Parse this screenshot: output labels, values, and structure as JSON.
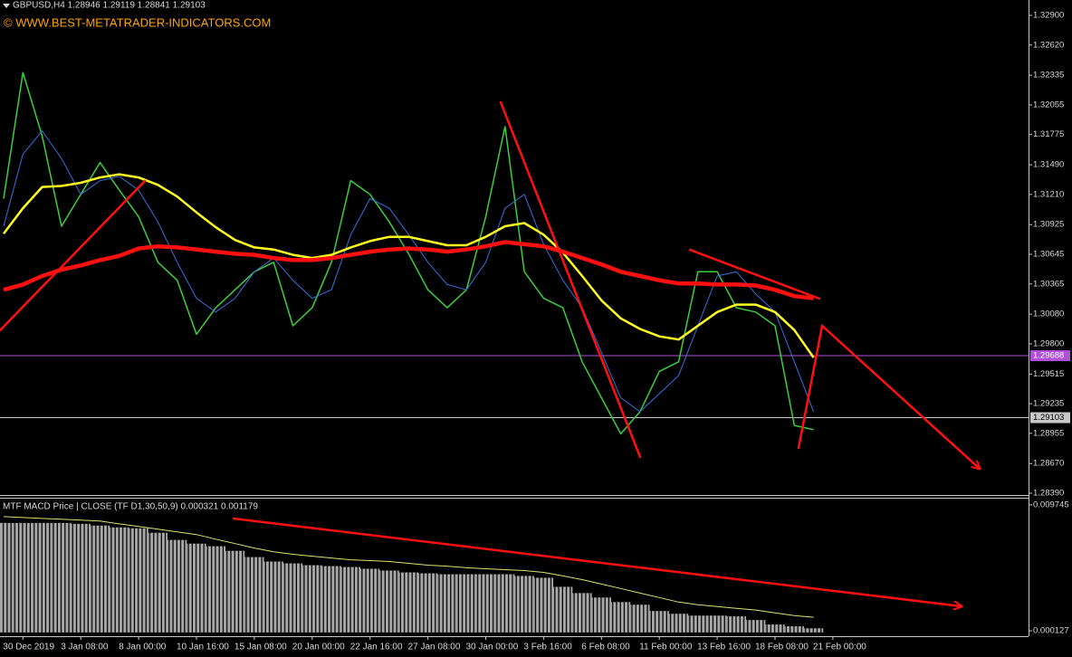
{
  "chart_data": [
    {
      "type": "line",
      "title": "GBPUSD,H4  1.28946 1.29119 1.28841 1.29103",
      "subtitle": "© WWW.BEST-METATRADER-INDICATORS.COM",
      "categories": [
        null,
        "30 Dec 2019",
        null,
        null,
        "3 Jan 08:00",
        null,
        null,
        "8 Jan 00:00",
        null,
        null,
        "10 Jan 16:00",
        null,
        null,
        "15 Jan 08:00",
        null,
        null,
        "20 Jan 00:00",
        null,
        null,
        "22 Jan 16:00",
        null,
        null,
        "27 Jan 08:00",
        null,
        null,
        "30 Jan 00:00",
        null,
        null,
        "3 Feb 16:00",
        null,
        null,
        "6 Feb 08:00",
        null,
        null,
        "11 Feb 00:00",
        null,
        null,
        "13 Feb 16:00",
        null,
        null,
        "18 Feb 08:00",
        null,
        null,
        "21 Feb 00:00"
      ],
      "series": [
        {
          "color": "#3ccf3c",
          "width": 1.5,
          "values": [
            1.3117,
            1.3236,
            1.3176,
            1.3091,
            1.3121,
            1.3151,
            1.3125,
            1.31,
            1.3057,
            1.304,
            1.2989,
            1.3014,
            1.3031,
            1.3048,
            1.3057,
            1.2997,
            1.3014,
            1.3057,
            1.3134,
            1.3121,
            1.3095,
            1.3065,
            1.3031,
            1.3014,
            1.3031,
            1.31,
            1.3185,
            1.3048,
            1.3023,
            1.3014,
            1.2963,
            1.2929,
            1.2895,
            1.2916,
            1.2954,
            1.2963,
            1.3048,
            1.3048,
            1.3014,
            1.301,
            1.2997,
            1.2903,
            1.2899,
            null
          ]
        },
        {
          "color": "#3a6fe0",
          "width": 1,
          "values": [
            1.3091,
            1.3159,
            1.3181,
            1.3155,
            1.3121,
            1.3134,
            1.3138,
            1.3125,
            1.3095,
            1.3057,
            1.3023,
            1.301,
            1.3023,
            1.3048,
            1.3061,
            1.304,
            1.3023,
            1.3031,
            1.3083,
            1.3117,
            1.3108,
            1.3083,
            1.3057,
            1.3036,
            1.3031,
            1.3057,
            1.3108,
            1.3121,
            1.3074,
            1.304,
            1.3014,
            1.2972,
            1.2929,
            1.2916,
            1.2933,
            1.295,
            1.2997,
            1.3044,
            1.3048,
            1.3027,
            1.301,
            1.2963,
            1.2916,
            null
          ]
        },
        {
          "color": "#ffff20",
          "width": 2.5,
          "values": [
            1.3084,
            1.3108,
            1.3128,
            1.3129,
            1.3132,
            1.3137,
            1.314,
            1.3137,
            1.313,
            1.3119,
            1.3104,
            1.309,
            1.3078,
            1.3071,
            1.3069,
            1.3064,
            1.3061,
            1.3064,
            1.3071,
            1.3077,
            1.3081,
            1.3081,
            1.3077,
            1.3073,
            1.3073,
            1.3081,
            1.3091,
            1.3094,
            1.3083,
            1.3066,
            1.3044,
            1.3021,
            1.3004,
            1.2994,
            1.2987,
            1.2984,
            1.2997,
            1.301,
            1.3017,
            1.3017,
            1.301,
            1.2993,
            1.2967,
            null
          ]
        },
        {
          "color": "#ff1010",
          "width": 4.5,
          "values": [
            1.3031,
            1.3036,
            1.3044,
            1.305,
            1.3054,
            1.3059,
            1.3063,
            1.307,
            1.3072,
            1.3071,
            1.3069,
            1.3067,
            1.3065,
            1.3064,
            1.3061,
            1.3059,
            1.3059,
            1.3061,
            1.3064,
            1.3067,
            1.3069,
            1.307,
            1.3069,
            1.3067,
            1.3069,
            1.3072,
            1.3076,
            1.3074,
            1.3072,
            1.3067,
            1.3061,
            1.3055,
            1.3048,
            1.3044,
            1.304,
            1.3037,
            1.3037,
            1.3036,
            1.3036,
            1.3035,
            1.3031,
            1.3025,
            1.3023,
            null
          ]
        }
      ],
      "hlines": [
        {
          "value": 1.29688,
          "color": "#b050d8",
          "label_color": "#ffffff"
        },
        {
          "value": 1.29103,
          "color": "#c8c8c8",
          "label_color": "#000000"
        }
      ],
      "ylim": [
        1.28373,
        1.33045
      ],
      "yticks": [
        {
          "value": 1.329,
          "label": "1.32900"
        },
        {
          "value": 1.3262,
          "label": "1.32620"
        },
        {
          "value": 1.32335,
          "label": "1.32335"
        },
        {
          "value": 1.32055,
          "label": "1.32055"
        },
        {
          "value": 1.31775,
          "label": "1.31775"
        },
        {
          "value": 1.3149,
          "label": "1.31490"
        },
        {
          "value": 1.3121,
          "label": "1.31210"
        },
        {
          "value": 1.30925,
          "label": "1.30925"
        },
        {
          "value": 1.30645,
          "label": "1.30645"
        },
        {
          "value": 1.30365,
          "label": "1.30365"
        },
        {
          "value": 1.3008,
          "label": "1.30080"
        },
        {
          "value": 1.298,
          "label": "1.29800"
        },
        {
          "value": 1.29515,
          "label": "1.29515"
        },
        {
          "value": 1.29235,
          "label": "1.29235"
        },
        {
          "value": 1.28955,
          "label": "1.28955"
        },
        {
          "value": 1.2867,
          "label": "1.28670"
        },
        {
          "value": 1.2839,
          "label": "1.28390"
        }
      ]
    },
    {
      "type": "bar",
      "title": "MTF MACD Price | CLOSE  (TF D1,30,50,9) 0.000321 0.001179",
      "series": [
        {
          "color": "#a8a8a8",
          "values": [
            0.00837,
            0.00837,
            0.00837,
            0.00837,
            0.0083,
            0.00817,
            0.00803,
            0.00796,
            0.00762,
            0.00707,
            0.00679,
            0.00659,
            0.00624,
            0.00576,
            0.00542,
            0.00528,
            0.00514,
            0.00507,
            0.005,
            0.00487,
            0.00473,
            0.00459,
            0.00452,
            0.00445,
            0.00445,
            0.00445,
            0.00445,
            0.00432,
            0.00418,
            0.00349,
            0.00301,
            0.00267,
            0.00232,
            0.00212,
            0.00164,
            0.00143,
            0.00129,
            0.00129,
            0.00123,
            0.00095,
            0.00061,
            0.00047,
            0.00032,
            null
          ]
        },
        {
          "type": "line",
          "color": "#e0e070",
          "values": [
            0.00885,
            0.00878,
            0.00871,
            0.00865,
            0.00858,
            0.00851,
            0.0083,
            0.0081,
            0.00789,
            0.00768,
            0.00748,
            0.00713,
            0.00679,
            0.00645,
            0.00617,
            0.00597,
            0.00583,
            0.00569,
            0.00555,
            0.00549,
            0.00542,
            0.00528,
            0.00514,
            0.00507,
            0.00494,
            0.00487,
            0.0048,
            0.00473,
            0.00459,
            0.00432,
            0.00404,
            0.0037,
            0.00336,
            0.00301,
            0.00267,
            0.00232,
            0.00212,
            0.00198,
            0.00184,
            0.00171,
            0.0015,
            0.00129,
            0.00116,
            null
          ]
        }
      ],
      "ylim": [
        -0.000285,
        0.010295
      ],
      "yticks": [
        0.009745,
        0.000127
      ]
    }
  ]
}
